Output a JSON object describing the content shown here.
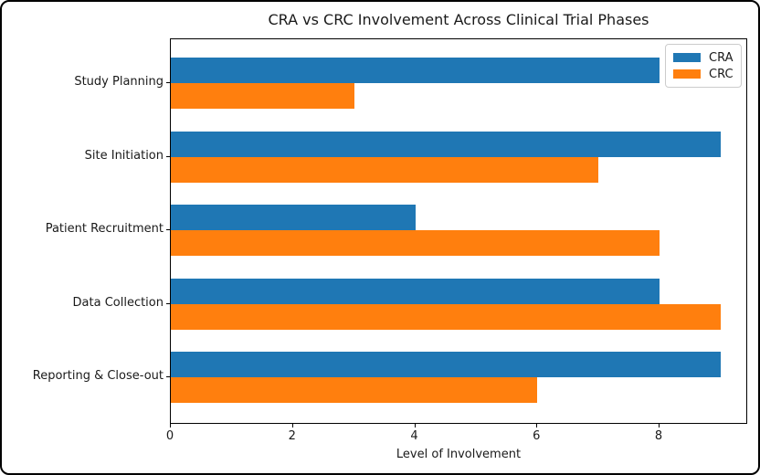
{
  "chart_data": {
    "type": "bar",
    "orientation": "horizontal",
    "title": "CRA vs CRC Involvement Across Clinical Trial Phases",
    "xlabel": "Level of Involvement",
    "ylabel": "",
    "categories": [
      "Study Planning",
      "Site Initiation",
      "Patient Recruitment",
      "Data Collection",
      "Reporting & Close-out"
    ],
    "series": [
      {
        "name": "CRA",
        "color": "#1f77b4",
        "values": [
          8,
          9,
          4,
          8,
          9
        ]
      },
      {
        "name": "CRC",
        "color": "#ff7f0e",
        "values": [
          3,
          7,
          8,
          9,
          6
        ]
      }
    ],
    "xlim": [
      0,
      9.45
    ],
    "xticks": [
      0,
      2,
      4,
      6,
      8
    ],
    "grid": false,
    "legend_position": "upper right"
  }
}
